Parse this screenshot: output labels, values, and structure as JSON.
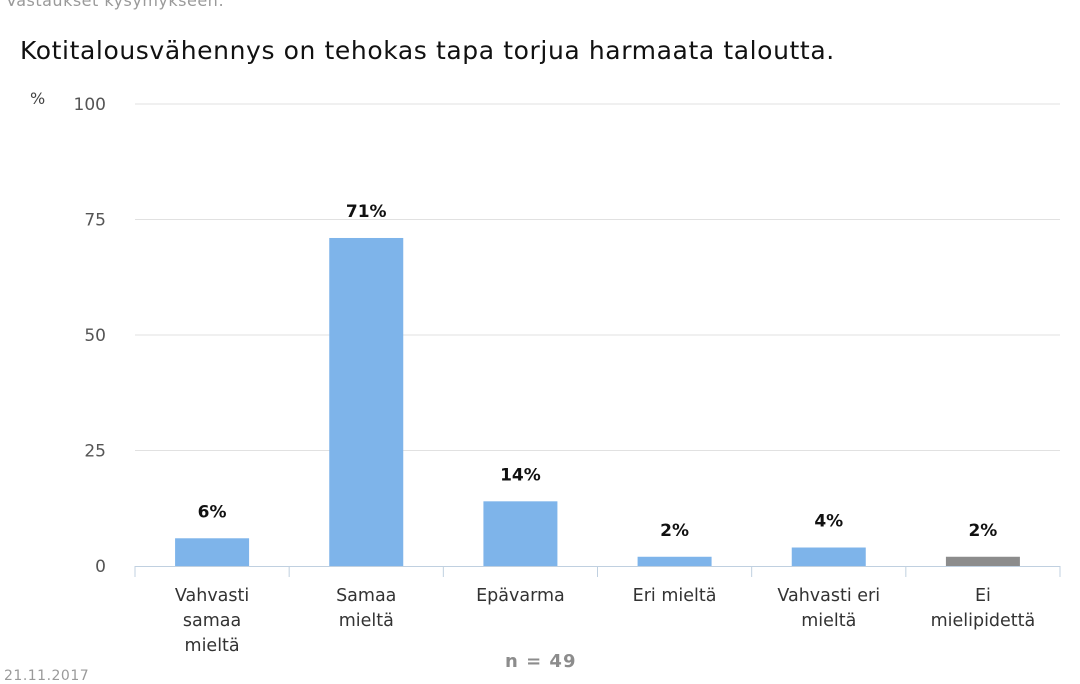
{
  "header": {
    "question_prefix": "Vastaukset kysymykseen:"
  },
  "footer": {
    "n_label": "n = 49",
    "date": "21.11.2017"
  },
  "colors": {
    "bar": "#7eb4ea",
    "bar_no_opinion": "#8c8c8c",
    "grid": "#e1e1e1",
    "axis": "#c0d0e0"
  },
  "chart_data": {
    "type": "bar",
    "title": "Kotitalousvähennys on tehokas tapa torjua harmaata taloutta.",
    "ylabel": "%",
    "xlabel": "",
    "ylim": [
      0,
      100
    ],
    "yticks": [
      0,
      25,
      50,
      75,
      100
    ],
    "categories": [
      [
        "Vahvasti",
        "samaa",
        "mieltä"
      ],
      [
        "Samaa",
        "mieltä"
      ],
      [
        "Epävarma"
      ],
      [
        "Eri mieltä"
      ],
      [
        "Vahvasti eri",
        "mieltä"
      ],
      [
        "Ei",
        "mielipidettä"
      ]
    ],
    "values": [
      6,
      71,
      14,
      2,
      4,
      2
    ],
    "data_labels": [
      "6%",
      "71%",
      "14%",
      "2%",
      "4%",
      "2%"
    ],
    "bar_colors": [
      "#7eb4ea",
      "#7eb4ea",
      "#7eb4ea",
      "#7eb4ea",
      "#7eb4ea",
      "#8c8c8c"
    ],
    "grid": true,
    "legend": "none"
  }
}
